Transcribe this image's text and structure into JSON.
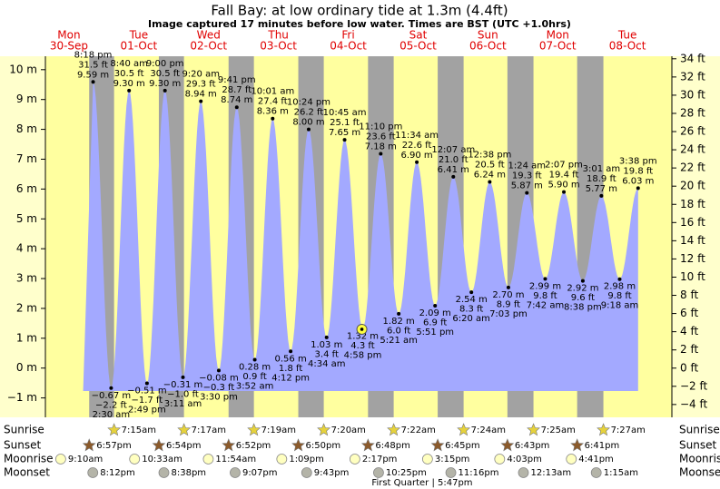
{
  "chart_data": {
    "type": "tide",
    "title": "Fall Bay: at low  ordinary tide at 1.3m (4.4ft)",
    "subtitle": "Image captured 17 minutes before low water. Times are BST (UTC +1.0hrs)",
    "days": [
      {
        "weekday": "Mon",
        "date": "30-Sep"
      },
      {
        "weekday": "Tue",
        "date": "01-Oct"
      },
      {
        "weekday": "Wed",
        "date": "02-Oct"
      },
      {
        "weekday": "Thu",
        "date": "03-Oct"
      },
      {
        "weekday": "Fri",
        "date": "04-Oct"
      },
      {
        "weekday": "Sat",
        "date": "05-Oct"
      },
      {
        "weekday": "Sun",
        "date": "06-Oct"
      },
      {
        "weekday": "Mon",
        "date": "07-Oct"
      },
      {
        "weekday": "Tue",
        "date": "08-Oct"
      }
    ],
    "dates": [
      "30-Sep",
      "01-Oct",
      "01-Oct",
      "01-Oct",
      "01-Oct",
      "02-Oct",
      "02-Oct",
      "02-Oct",
      "02-Oct",
      "03-Oct",
      "03-Oct",
      "03-Oct",
      "03-Oct",
      "04-Oct",
      "04-Oct",
      "04-Oct",
      "04-Oct",
      "05-Oct",
      "05-Oct",
      "05-Oct",
      "06-Oct",
      "06-Oct",
      "06-Oct",
      "06-Oct",
      "07-Oct",
      "07-Oct",
      "07-Oct",
      "07-Oct",
      "08-Oct",
      "08-Oct",
      "08-Oct"
    ],
    "times": [
      "8:18 pm",
      "2:30 am",
      "8:40 am",
      "2:49 pm",
      "9:00 pm",
      "3:11 am",
      "9:20 am",
      "3:30 pm",
      "9:41 pm",
      "3:52 am",
      "10:01 am",
      "4:12 pm",
      "10:24 pm",
      "4:34 am",
      "10:45 am",
      "4:58 pm",
      "11:10 pm",
      "5:21 am",
      "11:34 am",
      "5:51 pm",
      "12:07 am",
      "6:20 am",
      "12:38 pm",
      "7:03 pm",
      "1:24 am",
      "7:42 am",
      "2:07 pm",
      "8:38 pm",
      "3:01 am",
      "9:18 am",
      "3:38 pm"
    ],
    "values": [
      9.59,
      -0.67,
      9.3,
      -0.51,
      9.3,
      -0.31,
      8.94,
      -0.08,
      8.74,
      0.28,
      8.36,
      0.56,
      8.0,
      1.03,
      7.65,
      1.32,
      7.18,
      1.82,
      6.9,
      2.09,
      6.41,
      2.54,
      6.24,
      2.7,
      5.87,
      2.99,
      5.9,
      2.92,
      5.77,
      2.98,
      6.03
    ],
    "value_labels": [
      "9.59 m",
      "−0.67 m",
      "9.30 m",
      "−0.51 m",
      "9.30 m",
      "−0.31 m",
      "8.94 m",
      "−0.08 m",
      "8.74 m",
      "0.28 m",
      "8.36 m",
      "0.56 m",
      "8.00 m",
      "1.03 m",
      "7.65 m",
      "1.32 m",
      "7.18 m",
      "1.82 m",
      "6.90 m",
      "2.09 m",
      "6.41 m",
      "2.54 m",
      "6.24 m",
      "2.70 m",
      "5.87 m",
      "2.99 m",
      "5.90 m",
      "2.92 m",
      "5.77 m",
      "2.98 m",
      "6.03 m"
    ],
    "ft_labels": [
      "31.5 ft",
      "−2.2 ft",
      "30.5 ft",
      "−1.7 ft",
      "30.5 ft",
      "−1.0 ft",
      "29.3 ft",
      "−0.3 ft",
      "28.7 ft",
      "0.9 ft",
      "27.4 ft",
      "1.8 ft",
      "26.2 ft",
      "3.4 ft",
      "25.1 ft",
      "4.3 ft",
      "23.6 ft",
      "6.0 ft",
      "22.6 ft",
      "6.9 ft",
      "21.0 ft",
      "8.3 ft",
      "20.5 ft",
      "8.9 ft",
      "19.3 ft",
      "9.8 ft",
      "19.4 ft",
      "9.6 ft",
      "18.9 ft",
      "9.8 ft",
      "19.8 ft"
    ],
    "now": {
      "date": "04-Oct",
      "time": "4:41 pm",
      "value": 1.3
    },
    "ylim": [
      -1.65,
      10.45
    ],
    "yticks": [
      {
        "value": -1,
        "label": "−1 m"
      },
      {
        "value": 0,
        "label": "0 m"
      },
      {
        "value": 1,
        "label": "1 m"
      },
      {
        "value": 2,
        "label": "2 m"
      },
      {
        "value": 3,
        "label": "3 m"
      },
      {
        "value": 4,
        "label": "4 m"
      },
      {
        "value": 5,
        "label": "5 m"
      },
      {
        "value": 6,
        "label": "6 m"
      },
      {
        "value": 7,
        "label": "7 m"
      },
      {
        "value": 8,
        "label": "8 m"
      },
      {
        "value": 9,
        "label": "9 m"
      },
      {
        "value": 10,
        "label": "10 m"
      }
    ],
    "y2lim": [
      -5.41,
      34.28
    ],
    "y2ticks": [
      {
        "value": -4,
        "label": "−4 ft"
      },
      {
        "value": -2,
        "label": "−2 ft"
      },
      {
        "value": 0,
        "label": "0 ft"
      },
      {
        "value": 2,
        "label": "2 ft"
      },
      {
        "value": 4,
        "label": "4 ft"
      },
      {
        "value": 6,
        "label": "6 ft"
      },
      {
        "value": 8,
        "label": "8 ft"
      },
      {
        "value": 10,
        "label": "10 ft"
      },
      {
        "value": 12,
        "label": "12 ft"
      },
      {
        "value": 14,
        "label": "14 ft"
      },
      {
        "value": 16,
        "label": "16 ft"
      },
      {
        "value": 18,
        "label": "18 ft"
      },
      {
        "value": 20,
        "label": "20 ft"
      },
      {
        "value": 22,
        "label": "22 ft"
      },
      {
        "value": 24,
        "label": "24 ft"
      },
      {
        "value": 26,
        "label": "26 ft"
      },
      {
        "value": 28,
        "label": "28 ft"
      },
      {
        "value": 30,
        "label": "30 ft"
      },
      {
        "value": 32,
        "label": "32 ft"
      },
      {
        "value": 34,
        "label": "34 ft"
      }
    ],
    "row_labels": [
      "Sunrise",
      "Sunset",
      "Moonrise",
      "Moonset"
    ],
    "sunrise": [
      {
        "date": "01-Oct",
        "time": "7:15am"
      },
      {
        "date": "02-Oct",
        "time": "7:17am"
      },
      {
        "date": "03-Oct",
        "time": "7:19am"
      },
      {
        "date": "04-Oct",
        "time": "7:20am"
      },
      {
        "date": "05-Oct",
        "time": "7:22am"
      },
      {
        "date": "06-Oct",
        "time": "7:24am"
      },
      {
        "date": "07-Oct",
        "time": "7:25am"
      },
      {
        "date": "08-Oct",
        "time": "7:27am"
      }
    ],
    "sunset": [
      {
        "date": "30-Sep",
        "time": "6:57pm"
      },
      {
        "date": "01-Oct",
        "time": "6:54pm"
      },
      {
        "date": "02-Oct",
        "time": "6:52pm"
      },
      {
        "date": "03-Oct",
        "time": "6:50pm"
      },
      {
        "date": "04-Oct",
        "time": "6:48pm"
      },
      {
        "date": "05-Oct",
        "time": "6:45pm"
      },
      {
        "date": "06-Oct",
        "time": "6:43pm"
      },
      {
        "date": "07-Oct",
        "time": "6:41pm"
      }
    ],
    "moonrise": [
      {
        "date": "30-Sep",
        "time": "9:10am"
      },
      {
        "date": "01-Oct",
        "time": "10:33am"
      },
      {
        "date": "02-Oct",
        "time": "11:54am"
      },
      {
        "date": "03-Oct",
        "time": "1:09pm"
      },
      {
        "date": "04-Oct",
        "time": "2:17pm"
      },
      {
        "date": "05-Oct",
        "time": "3:15pm"
      },
      {
        "date": "06-Oct",
        "time": "4:03pm"
      },
      {
        "date": "07-Oct",
        "time": "4:41pm"
      }
    ],
    "moonset": [
      {
        "date": "30-Sep",
        "time": "8:12pm"
      },
      {
        "date": "01-Oct",
        "time": "8:38pm"
      },
      {
        "date": "02-Oct",
        "time": "9:07pm"
      },
      {
        "date": "03-Oct",
        "time": "9:43pm"
      },
      {
        "date": "04-Oct",
        "time": "10:25pm"
      },
      {
        "date": "05-Oct",
        "time": "11:16pm"
      },
      {
        "date": "07-Oct",
        "time": "12:13am"
      },
      {
        "date": "08-Oct",
        "time": "1:15am"
      }
    ],
    "moon_phase": "First Quarter | 5:47pm",
    "colors": {
      "tide": "#a3a9ff",
      "day": "#ffff9f",
      "night": "#a2a2a2",
      "margin": "#ffffcc",
      "day_label": "#e00000",
      "sunrise": "#e6d23c",
      "sunset": "#8b5a2b",
      "moonrise": "#ffffc0",
      "moonset": "#b4b4a8"
    }
  }
}
